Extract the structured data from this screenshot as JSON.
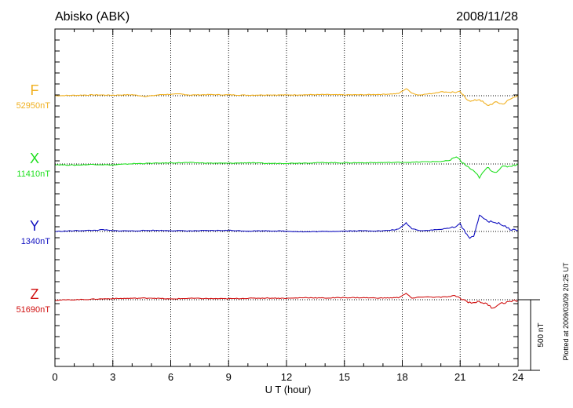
{
  "chart_data": {
    "type": "line",
    "title": "Abisko (ABK)",
    "date": "2008/11/28",
    "xlabel": "U T (hour)",
    "xlim": [
      0,
      24
    ],
    "xticks": [
      0,
      3,
      6,
      9,
      12,
      15,
      18,
      21,
      24
    ],
    "x_minor_step": 1,
    "grid": "vertical dotted at major ticks",
    "scale_bar_label": "500 nT",
    "scale_bar_nT": 500,
    "plotted_note": "Plotted at 2009/03/09 20:25 UT",
    "series": [
      {
        "name": "F",
        "baseline_label": "52950nT",
        "color": "#f0b020",
        "offset_nT": 0,
        "x": [
          0,
          1,
          2,
          3,
          4,
          4.7,
          5.5,
          6.5,
          7,
          8,
          9,
          10,
          11,
          12,
          13,
          14,
          15,
          16,
          17,
          17.8,
          18.2,
          18.5,
          18.8,
          19.5,
          20,
          20.6,
          21,
          21.3,
          21.6,
          22,
          22.4,
          22.9,
          23.2,
          23.6,
          24
        ],
        "y": [
          0,
          3,
          6,
          4,
          7,
          -5,
          8,
          12,
          5,
          8,
          6,
          4,
          6,
          5,
          7,
          8,
          6,
          7,
          10,
          15,
          50,
          20,
          5,
          15,
          28,
          25,
          25,
          -20,
          -40,
          -25,
          -70,
          -45,
          -60,
          -25,
          5
        ]
      },
      {
        "name": "X",
        "baseline_label": "11410nT",
        "color": "#20e020",
        "offset_nT": 0,
        "x": [
          0,
          1,
          2,
          3,
          4,
          5,
          6,
          7,
          8,
          9,
          10,
          11,
          12,
          13,
          14,
          15,
          16,
          17,
          18,
          18.5,
          19,
          20,
          20.5,
          20.8,
          21.1,
          21.5,
          21.8,
          22,
          22.4,
          22.8,
          23.2,
          23.6,
          24
        ],
        "y": [
          -5,
          -8,
          -3,
          -7,
          2,
          5,
          8,
          10,
          6,
          5,
          9,
          4,
          5,
          7,
          10,
          8,
          9,
          10,
          12,
          12,
          15,
          18,
          25,
          55,
          10,
          -30,
          -65,
          -95,
          -25,
          -60,
          -20,
          -15,
          0
        ]
      },
      {
        "name": "Y",
        "baseline_label": "1340nT",
        "color": "#1010c0",
        "offset_nT": 0,
        "x": [
          0,
          1,
          2,
          2.5,
          3,
          4,
          5,
          6,
          7,
          8,
          9,
          10,
          11,
          12,
          13,
          14,
          15,
          16,
          17,
          17.8,
          18.2,
          18.5,
          19,
          19.5,
          20,
          20.5,
          21,
          21.2,
          21.5,
          21.7,
          22,
          22.5,
          23,
          23.5,
          24
        ],
        "y": [
          0,
          5,
          8,
          12,
          5,
          4,
          8,
          6,
          4,
          6,
          8,
          3,
          5,
          2,
          -3,
          0,
          3,
          5,
          4,
          15,
          60,
          20,
          5,
          10,
          15,
          25,
          50,
          10,
          -50,
          -30,
          110,
          70,
          60,
          20,
          5
        ]
      },
      {
        "name": "Z",
        "baseline_label": "51690nT",
        "color": "#d01010",
        "offset_nT": 0,
        "x": [
          0,
          1,
          2,
          3,
          4,
          5,
          6,
          7,
          8,
          9,
          10,
          11,
          12,
          13,
          14,
          15,
          16,
          17,
          17.8,
          18.2,
          18.5,
          19,
          20,
          20.8,
          21,
          21.5,
          22,
          22.3,
          22.7,
          23,
          23.5,
          24
        ],
        "y": [
          -3,
          0,
          4,
          8,
          10,
          12,
          5,
          10,
          8,
          7,
          10,
          12,
          10,
          15,
          12,
          15,
          14,
          12,
          15,
          45,
          10,
          20,
          18,
          25,
          10,
          -20,
          -15,
          -25,
          -60,
          -30,
          -15,
          -5
        ]
      }
    ]
  }
}
